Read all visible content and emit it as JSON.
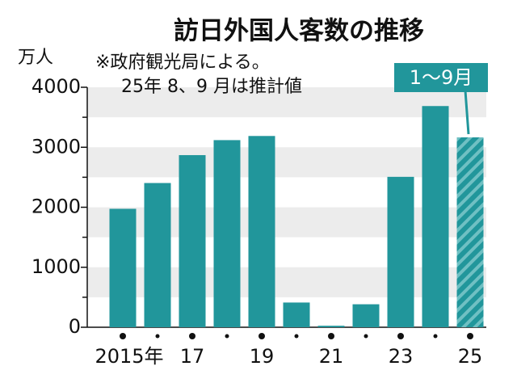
{
  "chart_data": {
    "type": "bar",
    "title": "訪日外国人客数の推移",
    "y_unit": "万人",
    "notes": [
      "※政府観光局による。",
      "25年 8、9 月は推計値"
    ],
    "annotation": "1〜9月",
    "categories": [
      "2015年",
      null,
      "17",
      null,
      "19",
      null,
      "21",
      null,
      "23",
      null,
      "25"
    ],
    "values": [
      1974,
      2404,
      2869,
      3119,
      3188,
      412,
      25,
      383,
      2507,
      3687,
      3165
    ],
    "hatch": [
      false,
      false,
      false,
      false,
      false,
      false,
      false,
      false,
      false,
      false,
      true
    ],
    "color": "#21969b",
    "ylim": [
      0,
      4000
    ],
    "yticks": [
      0,
      1000,
      2000,
      3000,
      4000
    ],
    "grid": true
  }
}
